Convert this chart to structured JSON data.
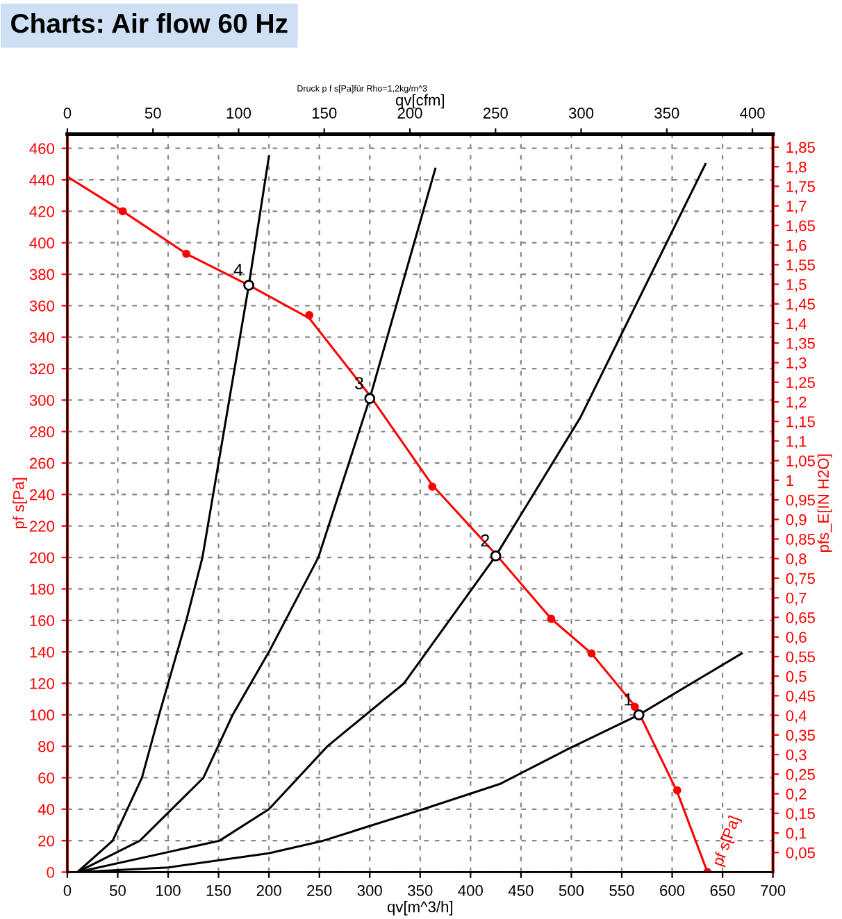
{
  "chart_data": {
    "type": "line",
    "title": "Charts: Air flow 60 Hz",
    "subtitle": "Druck p f s[Pa]für Rho=1,2kg/m^3",
    "xlabel": "qv[m^3/h]",
    "ylabel": "pf s[Pa]",
    "y2label": "pfs_E[IN H2O]",
    "x2label": "qv[cfm]",
    "xlim": [
      0,
      700
    ],
    "xticks": [
      0,
      50,
      100,
      150,
      200,
      250,
      300,
      350,
      400,
      450,
      500,
      550,
      600,
      650,
      700
    ],
    "x2lim": [
      0,
      412
    ],
    "x2ticks": [
      0,
      50,
      100,
      150,
      200,
      250,
      300,
      350,
      400
    ],
    "ylim": [
      0,
      469
    ],
    "yticks": [
      0,
      20,
      40,
      60,
      80,
      100,
      120,
      140,
      160,
      180,
      200,
      220,
      240,
      260,
      280,
      300,
      320,
      340,
      360,
      380,
      400,
      420,
      440,
      460
    ],
    "y2lim": [
      0,
      1.883
    ],
    "y2ticks": [
      {
        "value": 0.05,
        "label": "0,05"
      },
      {
        "value": 0.1,
        "label": "0,1"
      },
      {
        "value": 0.15,
        "label": "0,15"
      },
      {
        "value": 0.2,
        "label": "0,2"
      },
      {
        "value": 0.25,
        "label": "0,25"
      },
      {
        "value": 0.3,
        "label": "0,3"
      },
      {
        "value": 0.35,
        "label": "0,35"
      },
      {
        "value": 0.4,
        "label": "0,4"
      },
      {
        "value": 0.45,
        "label": "0,45"
      },
      {
        "value": 0.5,
        "label": "0,5"
      },
      {
        "value": 0.55,
        "label": "0,55"
      },
      {
        "value": 0.6,
        "label": "0,6"
      },
      {
        "value": 0.65,
        "label": "0,65"
      },
      {
        "value": 0.7,
        "label": "0,7"
      },
      {
        "value": 0.75,
        "label": "0,75"
      },
      {
        "value": 0.8,
        "label": "0,8"
      },
      {
        "value": 0.85,
        "label": "0,85"
      },
      {
        "value": 0.9,
        "label": "0,9"
      },
      {
        "value": 0.95,
        "label": "0,95"
      },
      {
        "value": 1,
        "label": "1"
      },
      {
        "value": 1.05,
        "label": "1,05"
      },
      {
        "value": 1.1,
        "label": "1,1"
      },
      {
        "value": 1.15,
        "label": "1,15"
      },
      {
        "value": 1.2,
        "label": "1,2"
      },
      {
        "value": 1.25,
        "label": "1,25"
      },
      {
        "value": 1.3,
        "label": "1,3"
      },
      {
        "value": 1.35,
        "label": "1,35"
      },
      {
        "value": 1.4,
        "label": "1,4"
      },
      {
        "value": 1.45,
        "label": "1,45"
      },
      {
        "value": 1.5,
        "label": "1,5"
      },
      {
        "value": 1.55,
        "label": "1,55"
      },
      {
        "value": 1.6,
        "label": "1,6"
      },
      {
        "value": 1.65,
        "label": "1,65"
      },
      {
        "value": 1.7,
        "label": "1,7"
      },
      {
        "value": 1.75,
        "label": "1,75"
      },
      {
        "value": 1.8,
        "label": "1,8"
      },
      {
        "value": 1.85,
        "label": "1,85"
      }
    ],
    "grid": true,
    "legend": false,
    "series": [
      {
        "color": "#ff0000",
        "marker": "none",
        "x": [
          0,
          55,
          118,
          180,
          220,
          240,
          300,
          362,
          425,
          480,
          520,
          565,
          605,
          635
        ],
        "values": [
          442,
          420,
          393,
          373,
          359,
          352,
          303,
          246,
          202,
          161,
          139,
          104,
          51,
          0
        ]
      },
      {
        "type": "scatter",
        "color": "#ff0000",
        "marker": "circle",
        "x": [
          55,
          118,
          240,
          362,
          480,
          520,
          563,
          605,
          635
        ],
        "values": [
          420,
          393,
          354,
          245,
          161,
          139,
          105,
          52,
          0
        ]
      },
      {
        "color": "#000000",
        "marker": "none",
        "x": [
          10,
          45,
          74,
          91,
          118,
          134,
          180,
          200
        ],
        "values": [
          0,
          20,
          60,
          100,
          160,
          200,
          373,
          455
        ]
      },
      {
        "color": "#000000",
        "marker": "none",
        "x": [
          10,
          72,
          135,
          164,
          200,
          249,
          300,
          365
        ],
        "values": [
          0,
          20,
          60,
          100,
          140,
          200,
          301,
          447
        ]
      },
      {
        "color": "#000000",
        "marker": "none",
        "x": [
          10,
          151,
          200,
          258,
          334,
          425,
          509,
          633
        ],
        "values": [
          0,
          20,
          40,
          80,
          120,
          201,
          289,
          450
        ]
      },
      {
        "color": "#000000",
        "marker": "none",
        "x": [
          10,
          100,
          200,
          254,
          353,
          429,
          496,
          567,
          669
        ],
        "values": [
          0,
          3,
          12,
          20,
          40,
          56,
          78,
          100,
          139
        ]
      },
      {
        "type": "scatter",
        "color": "#000000",
        "marker": "circle",
        "x": [
          180,
          300,
          425,
          567
        ],
        "values": [
          373,
          301,
          201,
          100
        ]
      }
    ],
    "annotations": [
      {
        "text": "4",
        "x": 180,
        "y": 373
      },
      {
        "text": "3",
        "x": 300,
        "y": 301
      },
      {
        "text": "2",
        "x": 425,
        "y": 201
      },
      {
        "text": "1",
        "x": 567,
        "y": 100
      },
      {
        "text": "pf s[Pa]",
        "x": 635,
        "y": 0
      }
    ]
  }
}
